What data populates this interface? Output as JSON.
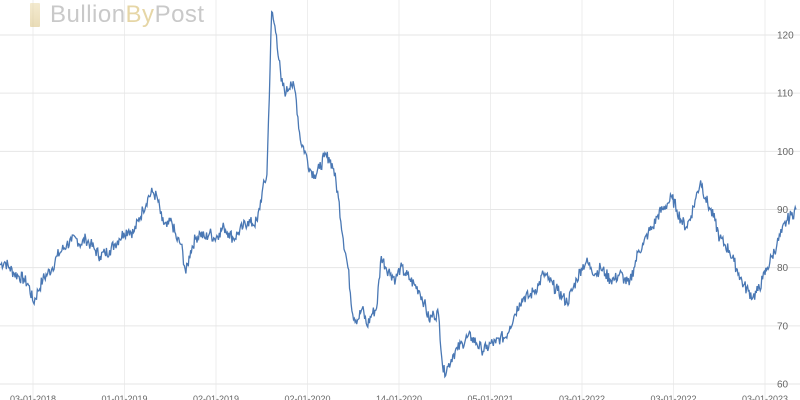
{
  "brand": {
    "logo_part1": "Bullion",
    "logo_part2": "By",
    "logo_part3": "Post"
  },
  "chart_data": {
    "type": "line",
    "title": "",
    "xlabel": "",
    "ylabel": "",
    "ylim": [
      58,
      126
    ],
    "yticks": [
      60,
      70,
      80,
      90,
      100,
      110,
      120
    ],
    "x_tick_labels": [
      "03-01-2018",
      "01-01-2019",
      "02-01-2019",
      "02-01-2020",
      "14-01-2020",
      "05-01-2021",
      "03-01-2022",
      "03-01-2022",
      "03-01-2023"
    ],
    "grid": true,
    "line_color": "#4a78b4",
    "series": [
      {
        "values": [
          80.5,
          81,
          80,
          79,
          78.5,
          78,
          77,
          74,
          76,
          78,
          79,
          80,
          82,
          83,
          84,
          84.5,
          85,
          84,
          85,
          84,
          83,
          82,
          82.5,
          83,
          84,
          85,
          86,
          86.5,
          86,
          88,
          90,
          92,
          93,
          92,
          88,
          87,
          88,
          85,
          84,
          79,
          83,
          85,
          86,
          85,
          86,
          85,
          86,
          87,
          86,
          85,
          86,
          87,
          88,
          87.5,
          88,
          93,
          96,
          124,
          120,
          112,
          110,
          112,
          110,
          102,
          100,
          97,
          96,
          97,
          99,
          99,
          97,
          92,
          85,
          80,
          72,
          71,
          73,
          70,
          72,
          73,
          82,
          80,
          79,
          78,
          80,
          79,
          78,
          77,
          76,
          74,
          71,
          72,
          72,
          62,
          63,
          65,
          66,
          67,
          68,
          68,
          67,
          66,
          66,
          67,
          67,
          68,
          68,
          70,
          72,
          74,
          75,
          75,
          76,
          77,
          79,
          78,
          77,
          76,
          75,
          74,
          76,
          78,
          80,
          81,
          80,
          79,
          80,
          79,
          78,
          78,
          79,
          78,
          77,
          80,
          83,
          84,
          86,
          87,
          89,
          90,
          91,
          92,
          90,
          88,
          87,
          89,
          92,
          95,
          92,
          90,
          88,
          85,
          84,
          83,
          81,
          79,
          77,
          76,
          75,
          76,
          78,
          80,
          82,
          84,
          86,
          88,
          89,
          90
        ]
      }
    ]
  }
}
